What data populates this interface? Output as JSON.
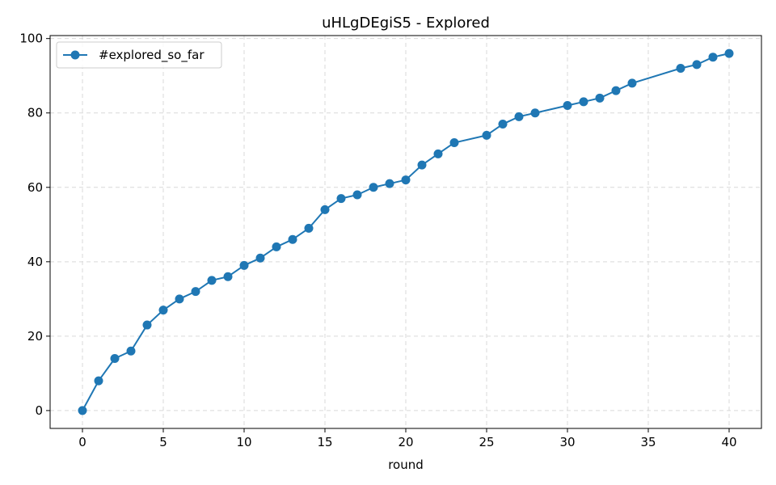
{
  "chart_data": {
    "type": "line",
    "title": "uHLgDEgiS5 - Explored",
    "xlabel": "round",
    "ylabel": "",
    "xlim": [
      -2,
      42
    ],
    "ylim": [
      -4.8,
      100.8
    ],
    "xticks": [
      0,
      5,
      10,
      15,
      20,
      25,
      30,
      35,
      40
    ],
    "yticks": [
      0,
      20,
      40,
      60,
      80,
      100
    ],
    "grid": true,
    "legend_position": "top-left",
    "series": [
      {
        "name": "#explored_so_far",
        "color": "#1f77b4",
        "x": [
          0,
          1,
          2,
          3,
          4,
          5,
          6,
          7,
          8,
          9,
          10,
          11,
          12,
          13,
          14,
          15,
          16,
          17,
          18,
          19,
          20,
          21,
          22,
          23,
          25,
          26,
          27,
          28,
          30,
          31,
          32,
          33,
          34,
          37,
          38,
          39,
          40
        ],
        "y": [
          0,
          8,
          14,
          16,
          23,
          27,
          30,
          32,
          35,
          36,
          39,
          41,
          44,
          46,
          49,
          54,
          57,
          58,
          60,
          61,
          62,
          66,
          69,
          72,
          74,
          77,
          79,
          80,
          82,
          83,
          84,
          86,
          88,
          92,
          93,
          95,
          96
        ]
      }
    ]
  }
}
